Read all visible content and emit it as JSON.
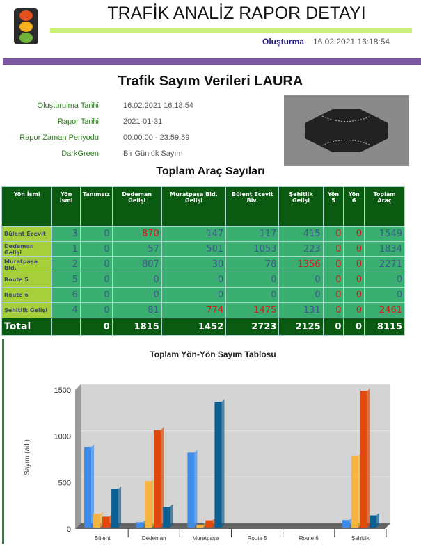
{
  "header": {
    "title": "TRAFİK ANALİZ RAPOR DETAYI",
    "created_label": "Oluşturma",
    "created_value": "16.02.2021 16:18:54",
    "icon": "traffic-light-icon"
  },
  "report": {
    "title": "Trafik Sayım Verileri LAURA",
    "info": [
      {
        "label": "Oluşturulma Tarihi",
        "value": "16.02.2021 16:18:54"
      },
      {
        "label": "Rapor Tarihi",
        "value": "2021-01-31"
      },
      {
        "label": "Rapor Zaman Periyodu",
        "value": "00:00:00 - 23:59:59"
      },
      {
        "label": "DarkGreen",
        "value": "Bir Günlük Sayım"
      }
    ]
  },
  "table": {
    "title": "Toplam Araç Sayıları",
    "headers": [
      "Yön İsmi",
      "Yön İsmi",
      "Tanımsız",
      "Dedeman Gelişi",
      "Muratpaşa Bld. Gelişi",
      "Bülent Ecevit Blv.",
      "Şehitlik Gelişi",
      "Yön 5",
      "Yön 6",
      "Toplam Araç"
    ],
    "rows": [
      {
        "name": "Bülent Ecevit",
        "cells": [
          "3",
          "0",
          "870",
          "147",
          "117",
          "415",
          "0",
          "0",
          "1549"
        ],
        "red": [
          2,
          6,
          7
        ]
      },
      {
        "name": "Dedeman Gelişi",
        "cells": [
          "1",
          "0",
          "57",
          "501",
          "1053",
          "223",
          "0",
          "0",
          "1834"
        ],
        "red": [
          6,
          7
        ]
      },
      {
        "name": "Muratpaşa Bld.",
        "cells": [
          "2",
          "0",
          "807",
          "30",
          "78",
          "1356",
          "0",
          "0",
          "2271"
        ],
        "red": [
          5,
          6,
          7
        ]
      },
      {
        "name": "Route 5",
        "cells": [
          "5",
          "0",
          "0",
          "0",
          "0",
          "0",
          "0",
          "0",
          "0"
        ],
        "red": [
          6,
          7
        ]
      },
      {
        "name": "Route 6",
        "cells": [
          "6",
          "0",
          "0",
          "0",
          "0",
          "0",
          "0",
          "0",
          "0"
        ],
        "red": [
          6,
          7
        ]
      },
      {
        "name": "Şehitlik Gelişi",
        "cells": [
          "4",
          "0",
          "81",
          "774",
          "1475",
          "131",
          "0",
          "0",
          "2461"
        ],
        "red": [
          3,
          4,
          6,
          7,
          8
        ]
      }
    ],
    "total": {
      "name": "Total",
      "cells": [
        "",
        "0",
        "1815",
        "1452",
        "2723",
        "2125",
        "0",
        "0",
        "8115"
      ]
    }
  },
  "chart_data": {
    "type": "bar",
    "title": "Toplam Yön-Yön Sayım Tablosu",
    "ylabel": "Sayım (ad.)",
    "xlabel": "",
    "ylim": [
      0,
      1500
    ],
    "yticks": [
      0,
      500,
      1000,
      1500
    ],
    "categories": [
      "Bülent",
      "Dedeman",
      "Muratpaşa",
      "Route 5",
      "Route 6",
      "Şehitlik"
    ],
    "series": [
      {
        "values": [
          870,
          57,
          807,
          0,
          0,
          81
        ],
        "color": "#3f8be8"
      },
      {
        "values": [
          147,
          501,
          30,
          0,
          0,
          774
        ],
        "color": "#f7b440"
      },
      {
        "values": [
          117,
          1053,
          78,
          0,
          0,
          1475
        ],
        "color": "#e04a0c"
      },
      {
        "values": [
          415,
          223,
          1356,
          0,
          0,
          131
        ],
        "color": "#0c5f92"
      }
    ]
  }
}
